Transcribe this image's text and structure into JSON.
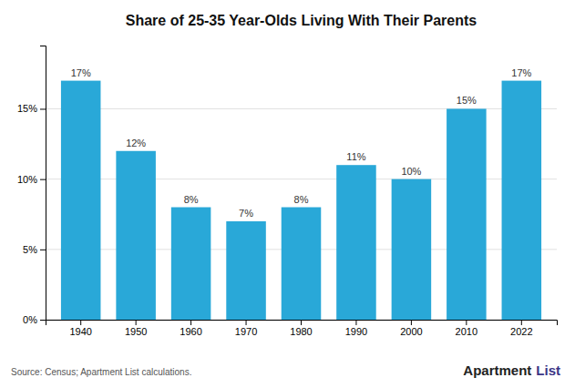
{
  "chart_data": {
    "type": "bar",
    "title": "Share of 25-35 Year-Olds Living With Their Parents",
    "categories": [
      "1940",
      "1950",
      "1960",
      "1970",
      "1980",
      "1990",
      "2000",
      "2010",
      "2022"
    ],
    "values": [
      17,
      12,
      8,
      7,
      8,
      11,
      10,
      15,
      17
    ],
    "value_labels": [
      "17%",
      "12%",
      "8%",
      "7%",
      "8%",
      "11%",
      "10%",
      "15%",
      "17%"
    ],
    "data_labels": true,
    "color": "#29A8D8",
    "ylim": [
      0,
      19.5
    ],
    "yticks": [
      {
        "value": 0,
        "label": "0%"
      },
      {
        "value": 5,
        "label": "5%"
      },
      {
        "value": 10,
        "label": "10%"
      },
      {
        "value": 15,
        "label": "15%"
      }
    ],
    "grid": true,
    "annotations": [
      "Source: Census; Apartment List calculations.",
      "Apartment",
      "List"
    ]
  }
}
